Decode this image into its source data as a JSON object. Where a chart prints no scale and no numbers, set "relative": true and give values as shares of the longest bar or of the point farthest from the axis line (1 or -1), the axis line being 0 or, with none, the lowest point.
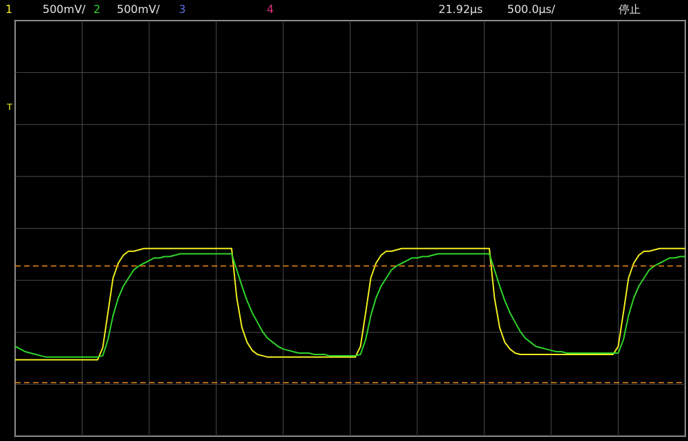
{
  "chart_data": {
    "type": "line",
    "relative": true,
    "legend": "top",
    "grid": true,
    "line_style": "solid",
    "marker": "none",
    "annotations": [
      "500mV/",
      "500mV/",
      "3",
      "4",
      "21.92μs",
      "500.0μs/",
      "停止",
      "T"
    ],
    "categories": [
      null,
      null,
      null,
      null,
      null,
      null,
      null,
      null,
      null,
      null,
      null,
      null,
      null,
      null,
      null,
      null,
      null,
      null,
      null,
      null,
      null,
      null,
      null,
      null,
      null,
      null,
      null,
      null,
      null,
      null,
      null,
      null,
      null,
      null,
      null,
      null,
      null,
      null,
      null,
      null,
      null,
      null,
      null,
      null,
      null,
      null,
      null,
      null,
      null,
      null,
      null,
      null,
      null,
      null,
      null,
      null,
      null,
      null,
      null,
      null,
      null,
      null,
      null,
      null,
      null,
      null,
      null,
      null,
      null,
      null,
      null,
      null,
      null,
      null,
      null,
      null,
      null,
      null,
      null,
      null,
      null,
      null,
      null,
      null,
      null,
      null,
      null,
      null,
      null,
      null,
      null,
      null,
      null,
      null,
      null,
      null,
      null,
      null,
      null,
      null,
      null,
      null,
      null,
      null,
      null,
      null,
      null,
      null,
      null,
      null,
      null,
      null,
      null,
      null,
      null,
      null,
      null,
      null,
      null,
      null,
      null,
      null,
      null,
      null,
      null,
      null,
      null,
      null,
      null,
      null,
      null
    ],
    "series": [
      {
        "name": "1",
        "color": "#f2ee1e",
        "values": [
          0.17,
          0.17,
          0.17,
          0.17,
          0.17,
          0.17,
          0.17,
          0.17,
          0.17,
          0.17,
          0.17,
          0.17,
          0.17,
          0.17,
          0.17,
          0.17,
          0.17,
          0.26,
          0.52,
          0.78,
          0.89,
          0.95,
          0.98,
          0.98,
          0.99,
          1,
          1,
          1,
          1,
          1,
          1,
          1,
          1,
          1,
          1,
          1,
          1,
          1,
          1,
          1,
          1,
          1,
          1,
          0.63,
          0.41,
          0.3,
          0.24,
          0.21,
          0.2,
          0.19,
          0.19,
          0.19,
          0.19,
          0.19,
          0.19,
          0.19,
          0.19,
          0.19,
          0.19,
          0.19,
          0.19,
          0.19,
          0.19,
          0.19,
          0.19,
          0.19,
          0.19,
          0.27,
          0.52,
          0.78,
          0.89,
          0.95,
          0.98,
          0.98,
          0.99,
          1,
          1,
          1,
          1,
          1,
          1,
          1,
          1,
          1,
          1,
          1,
          1,
          1,
          1,
          1,
          1,
          1,
          1,
          0.63,
          0.41,
          0.3,
          0.25,
          0.22,
          0.21,
          0.21,
          0.21,
          0.21,
          0.21,
          0.21,
          0.21,
          0.21,
          0.21,
          0.21,
          0.21,
          0.21,
          0.21,
          0.21,
          0.21,
          0.21,
          0.21,
          0.21,
          0.21,
          0.27,
          0.52,
          0.78,
          0.89,
          0.95,
          0.98,
          0.98,
          0.99,
          1,
          1,
          1,
          1,
          1,
          1
        ]
      },
      {
        "name": "2",
        "color": "#2fd62a",
        "values": [
          0.27,
          0.25,
          0.23,
          0.22,
          0.21,
          0.2,
          0.19,
          0.19,
          0.19,
          0.19,
          0.19,
          0.19,
          0.19,
          0.19,
          0.19,
          0.19,
          0.19,
          0.2,
          0.32,
          0.5,
          0.63,
          0.72,
          0.78,
          0.84,
          0.87,
          0.89,
          0.91,
          0.93,
          0.93,
          0.94,
          0.94,
          0.95,
          0.96,
          0.96,
          0.96,
          0.96,
          0.96,
          0.96,
          0.96,
          0.96,
          0.96,
          0.96,
          0.96,
          0.84,
          0.72,
          0.61,
          0.52,
          0.45,
          0.38,
          0.33,
          0.3,
          0.27,
          0.25,
          0.24,
          0.23,
          0.22,
          0.22,
          0.22,
          0.21,
          0.21,
          0.21,
          0.2,
          0.2,
          0.2,
          0.2,
          0.2,
          0.2,
          0.21,
          0.32,
          0.5,
          0.63,
          0.72,
          0.78,
          0.84,
          0.87,
          0.89,
          0.91,
          0.93,
          0.93,
          0.94,
          0.94,
          0.95,
          0.96,
          0.96,
          0.96,
          0.96,
          0.96,
          0.96,
          0.96,
          0.96,
          0.96,
          0.96,
          0.96,
          0.84,
          0.72,
          0.61,
          0.52,
          0.45,
          0.38,
          0.33,
          0.3,
          0.27,
          0.26,
          0.25,
          0.24,
          0.23,
          0.23,
          0.22,
          0.22,
          0.22,
          0.22,
          0.22,
          0.22,
          0.22,
          0.22,
          0.22,
          0.22,
          0.22,
          0.32,
          0.5,
          0.63,
          0.72,
          0.78,
          0.84,
          0.87,
          0.89,
          0.91,
          0.93,
          0.93,
          0.94,
          0.94
        ]
      }
    ],
    "ref_lines": [
      {
        "axis": "y",
        "value": 0.87,
        "color": "#f08a1c",
        "line_style": "dashed"
      },
      {
        "axis": "y",
        "value": 0,
        "color": "#f08a1c",
        "line_style": "dashed"
      }
    ]
  }
}
